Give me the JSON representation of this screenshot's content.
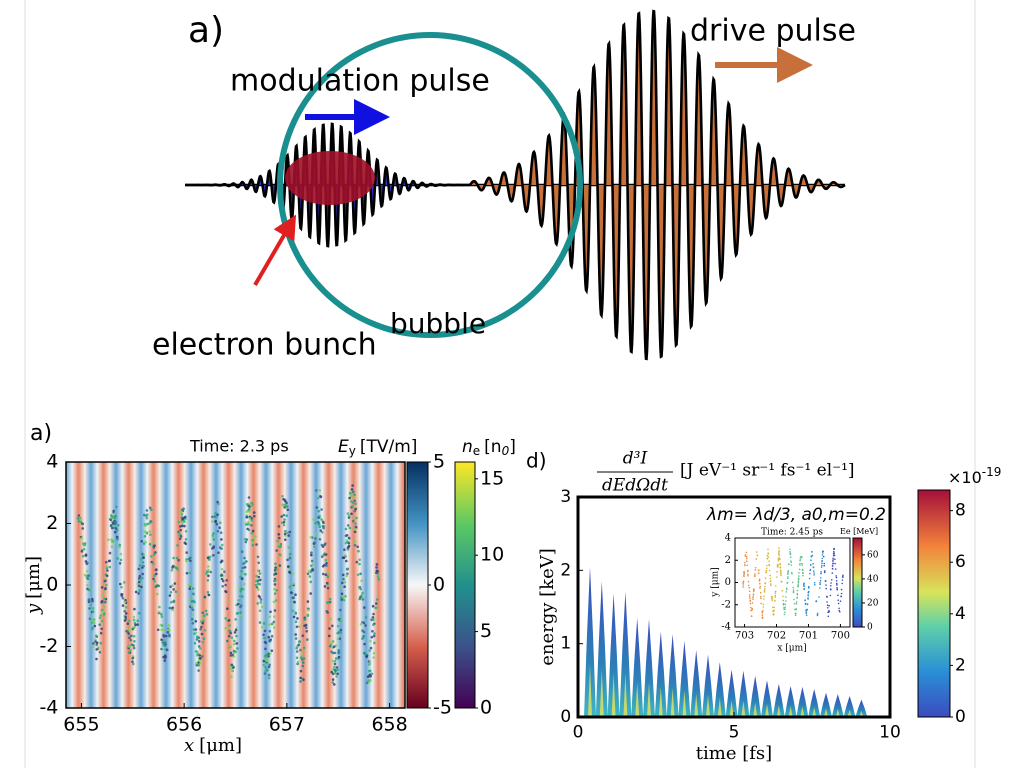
{
  "diagram": {
    "label": "a)",
    "modulation": "modulation pulse",
    "drive": "drive pulse",
    "bunch": "electron bunch",
    "bubble": "bubble"
  },
  "panel_a": {
    "label": "a)",
    "time": "Time: 2.3 ps",
    "field_symbol": "E",
    "field_sub": "y",
    "field_unit": "[TV/m]",
    "density_symbol": "n",
    "density_sub": "e",
    "density_unit": "[n",
    "density_unit_sub": "0",
    "density_unit_end": "]",
    "xlabel_var": "x",
    "xlabel_unit": "[μm]",
    "ylabel_var": "y",
    "ylabel_unit": "[μm]",
    "xlim": [
      654.85,
      658.15
    ],
    "xticks": [
      655,
      656,
      657,
      658
    ],
    "ylim": [
      -4,
      4
    ],
    "yticks": [
      -4,
      -2,
      0,
      2,
      4
    ],
    "field_lim": [
      -5,
      5
    ],
    "field_ticks": [
      -5,
      0,
      5
    ],
    "density_lim": [
      0,
      16.1
    ],
    "density_ticks": [
      0,
      5,
      10,
      15
    ]
  },
  "panel_d": {
    "label": "d)",
    "numerator": "d³I",
    "denominator": "dEdΩdt",
    "units": "[J eV⁻¹ sr⁻¹ fs⁻¹ el⁻¹]",
    "annotation": "λm= λd/3, a0,m=0.2",
    "xlabel": "time [fs]",
    "ylabel": "energy [keV]",
    "xlim": [
      0,
      10
    ],
    "xticks": [
      0,
      5,
      10
    ],
    "ylim": [
      0,
      3
    ],
    "yticks": [
      0,
      1,
      2,
      3
    ],
    "cbar_lim": [
      0,
      8.8
    ],
    "cbar_ticks": [
      0,
      2,
      4,
      6,
      8
    ],
    "cbar_base": "×10",
    "cbar_exp": "-19",
    "inset": {
      "time": "Time: 2.45 ps",
      "cbar_label": "Ee [MeV]",
      "xlabel": "x [μm]",
      "ylabel": "y [μm]",
      "xlim": [
        703.3,
        699.7
      ],
      "xticks": [
        703,
        702,
        701,
        700
      ],
      "ylim": [
        -4,
        4
      ],
      "yticks": [
        -4,
        -2,
        0,
        2,
        4
      ],
      "cbar_lim": [
        0,
        74
      ],
      "cbar_ticks": [
        0,
        20,
        40,
        60
      ]
    }
  }
}
